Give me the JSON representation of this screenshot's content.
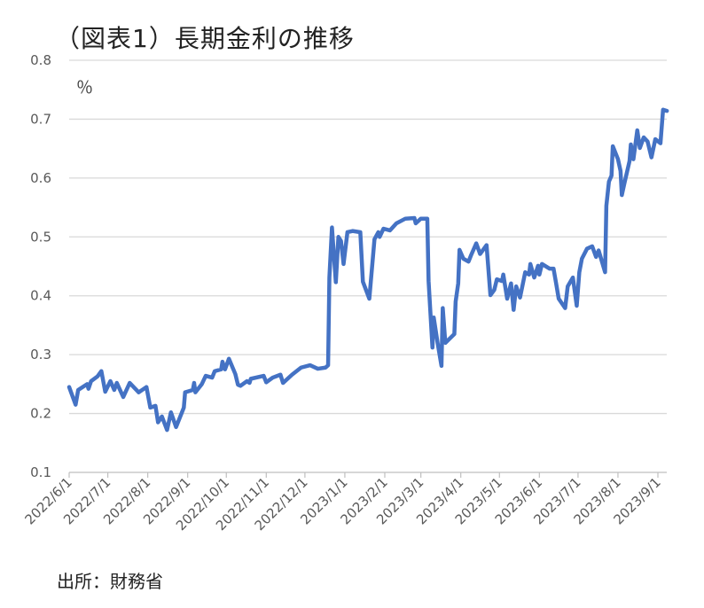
{
  "chart_data": {
    "type": "line",
    "title": "（図表1）長期金利の推移",
    "ylabel": "％",
    "xlabel": "",
    "source": "出所：財務省",
    "ylim": [
      0.1,
      0.8
    ],
    "yticks": [
      "0.1",
      "0.2",
      "0.3",
      "0.4",
      "0.5",
      "0.6",
      "0.7",
      "0.8"
    ],
    "xticks": [
      "2022/6/1",
      "2022/7/1",
      "2022/8/1",
      "2022/9/1",
      "2022/10/1",
      "2022/11/1",
      "2022/12/1",
      "2023/1/1",
      "2023/2/1",
      "2023/3/1",
      "2023/4/1",
      "2023/5/1",
      "2023/6/1",
      "2023/7/1",
      "2023/8/1",
      "2023/9/1"
    ],
    "grid": true,
    "line_color": "#4472C4",
    "series": [
      {
        "points": [
          [
            "2022-06-01",
            0.245
          ],
          [
            "2022-06-06",
            0.215
          ],
          [
            "2022-06-08",
            0.24
          ],
          [
            "2022-06-15",
            0.25
          ],
          [
            "2022-06-16",
            0.242
          ],
          [
            "2022-06-18",
            0.255
          ],
          [
            "2022-06-23",
            0.263
          ],
          [
            "2022-06-26",
            0.272
          ],
          [
            "2022-06-29",
            0.237
          ],
          [
            "2022-07-03",
            0.255
          ],
          [
            "2022-07-06",
            0.24
          ],
          [
            "2022-07-08",
            0.252
          ],
          [
            "2022-07-13",
            0.228
          ],
          [
            "2022-07-18",
            0.252
          ],
          [
            "2022-07-25",
            0.236
          ],
          [
            "2022-07-31",
            0.245
          ],
          [
            "2022-08-03",
            0.21
          ],
          [
            "2022-08-07",
            0.213
          ],
          [
            "2022-08-09",
            0.185
          ],
          [
            "2022-08-12",
            0.195
          ],
          [
            "2022-08-16",
            0.172
          ],
          [
            "2022-08-19",
            0.202
          ],
          [
            "2022-08-23",
            0.177
          ],
          [
            "2022-08-29",
            0.21
          ],
          [
            "2022-08-30",
            0.236
          ],
          [
            "2022-09-05",
            0.24
          ],
          [
            "2022-09-06",
            0.252
          ],
          [
            "2022-09-07",
            0.236
          ],
          [
            "2022-09-12",
            0.25
          ],
          [
            "2022-09-15",
            0.264
          ],
          [
            "2022-09-20",
            0.261
          ],
          [
            "2022-09-22",
            0.272
          ],
          [
            "2022-09-27",
            0.275
          ],
          [
            "2022-09-28",
            0.288
          ],
          [
            "2022-09-30",
            0.275
          ],
          [
            "2022-10-03",
            0.293
          ],
          [
            "2022-10-08",
            0.267
          ],
          [
            "2022-10-10",
            0.249
          ],
          [
            "2022-10-12",
            0.247
          ],
          [
            "2022-10-17",
            0.255
          ],
          [
            "2022-10-19",
            0.252
          ],
          [
            "2022-10-20",
            0.259
          ],
          [
            "2022-10-30",
            0.264
          ],
          [
            "2022-11-01",
            0.253
          ],
          [
            "2022-11-06",
            0.261
          ],
          [
            "2022-11-12",
            0.266
          ],
          [
            "2022-11-14",
            0.252
          ],
          [
            "2022-11-21",
            0.266
          ],
          [
            "2022-11-28",
            0.278
          ],
          [
            "2022-12-05",
            0.282
          ],
          [
            "2022-12-11",
            0.276
          ],
          [
            "2022-12-17",
            0.278
          ],
          [
            "2022-12-19",
            0.282
          ],
          [
            "2022-12-20",
            0.431
          ],
          [
            "2022-12-22",
            0.516
          ],
          [
            "2022-12-25",
            0.423
          ],
          [
            "2022-12-27",
            0.5
          ],
          [
            "2022-12-29",
            0.493
          ],
          [
            "2022-12-31",
            0.454
          ],
          [
            "2023-01-03",
            0.508
          ],
          [
            "2023-01-07",
            0.51
          ],
          [
            "2023-01-13",
            0.508
          ],
          [
            "2023-01-15",
            0.424
          ],
          [
            "2023-01-20",
            0.395
          ],
          [
            "2023-01-24",
            0.496
          ],
          [
            "2023-01-27",
            0.508
          ],
          [
            "2023-01-28",
            0.5
          ],
          [
            "2023-01-31",
            0.514
          ],
          [
            "2023-02-05",
            0.511
          ],
          [
            "2023-02-10",
            0.523
          ],
          [
            "2023-02-17",
            0.531
          ],
          [
            "2023-02-24",
            0.532
          ],
          [
            "2023-02-25",
            0.523
          ],
          [
            "2023-03-01",
            0.531
          ],
          [
            "2023-03-06",
            0.531
          ],
          [
            "2023-03-07",
            0.425
          ],
          [
            "2023-03-10",
            0.312
          ],
          [
            "2023-03-11",
            0.363
          ],
          [
            "2023-03-14",
            0.32
          ],
          [
            "2023-03-17",
            0.281
          ],
          [
            "2023-03-18",
            0.379
          ],
          [
            "2023-03-20",
            0.32
          ],
          [
            "2023-03-27",
            0.335
          ],
          [
            "2023-03-28",
            0.39
          ],
          [
            "2023-03-30",
            0.421
          ],
          [
            "2023-03-31",
            0.478
          ],
          [
            "2023-04-03",
            0.463
          ],
          [
            "2023-04-07",
            0.458
          ],
          [
            "2023-04-09",
            0.469
          ],
          [
            "2023-04-13",
            0.489
          ],
          [
            "2023-04-16",
            0.471
          ],
          [
            "2023-04-21",
            0.486
          ],
          [
            "2023-04-24",
            0.401
          ],
          [
            "2023-04-27",
            0.41
          ],
          [
            "2023-04-29",
            0.428
          ],
          [
            "2023-05-03",
            0.425
          ],
          [
            "2023-05-04",
            0.436
          ],
          [
            "2023-05-07",
            0.395
          ],
          [
            "2023-05-10",
            0.421
          ],
          [
            "2023-05-12",
            0.376
          ],
          [
            "2023-05-14",
            0.416
          ],
          [
            "2023-05-17",
            0.397
          ],
          [
            "2023-05-21",
            0.44
          ],
          [
            "2023-05-24",
            0.436
          ],
          [
            "2023-05-25",
            0.454
          ],
          [
            "2023-05-28",
            0.431
          ],
          [
            "2023-05-31",
            0.451
          ],
          [
            "2023-06-01",
            0.436
          ],
          [
            "2023-06-03",
            0.454
          ],
          [
            "2023-06-09",
            0.446
          ],
          [
            "2023-06-12",
            0.446
          ],
          [
            "2023-06-14",
            0.421
          ],
          [
            "2023-06-16",
            0.395
          ],
          [
            "2023-06-21",
            0.379
          ],
          [
            "2023-06-23",
            0.416
          ],
          [
            "2023-06-27",
            0.431
          ],
          [
            "2023-06-30",
            0.383
          ],
          [
            "2023-07-02",
            0.44
          ],
          [
            "2023-07-04",
            0.463
          ],
          [
            "2023-07-08",
            0.48
          ],
          [
            "2023-07-12",
            0.484
          ],
          [
            "2023-07-15",
            0.466
          ],
          [
            "2023-07-17",
            0.477
          ],
          [
            "2023-07-22",
            0.44
          ],
          [
            "2023-07-23",
            0.553
          ],
          [
            "2023-07-25",
            0.594
          ],
          [
            "2023-07-27",
            0.604
          ],
          [
            "2023-07-28",
            0.654
          ],
          [
            "2023-08-01",
            0.632
          ],
          [
            "2023-08-03",
            0.612
          ],
          [
            "2023-08-04",
            0.571
          ],
          [
            "2023-08-06",
            0.591
          ],
          [
            "2023-08-10",
            0.629
          ],
          [
            "2023-08-11",
            0.657
          ],
          [
            "2023-08-13",
            0.632
          ],
          [
            "2023-08-16",
            0.681
          ],
          [
            "2023-08-18",
            0.651
          ],
          [
            "2023-08-21",
            0.669
          ],
          [
            "2023-08-24",
            0.662
          ],
          [
            "2023-08-27",
            0.635
          ],
          [
            "2023-08-30",
            0.666
          ],
          [
            "2023-09-03",
            0.659
          ],
          [
            "2023-09-05",
            0.716
          ],
          [
            "2023-09-08",
            0.714
          ]
        ]
      }
    ]
  }
}
